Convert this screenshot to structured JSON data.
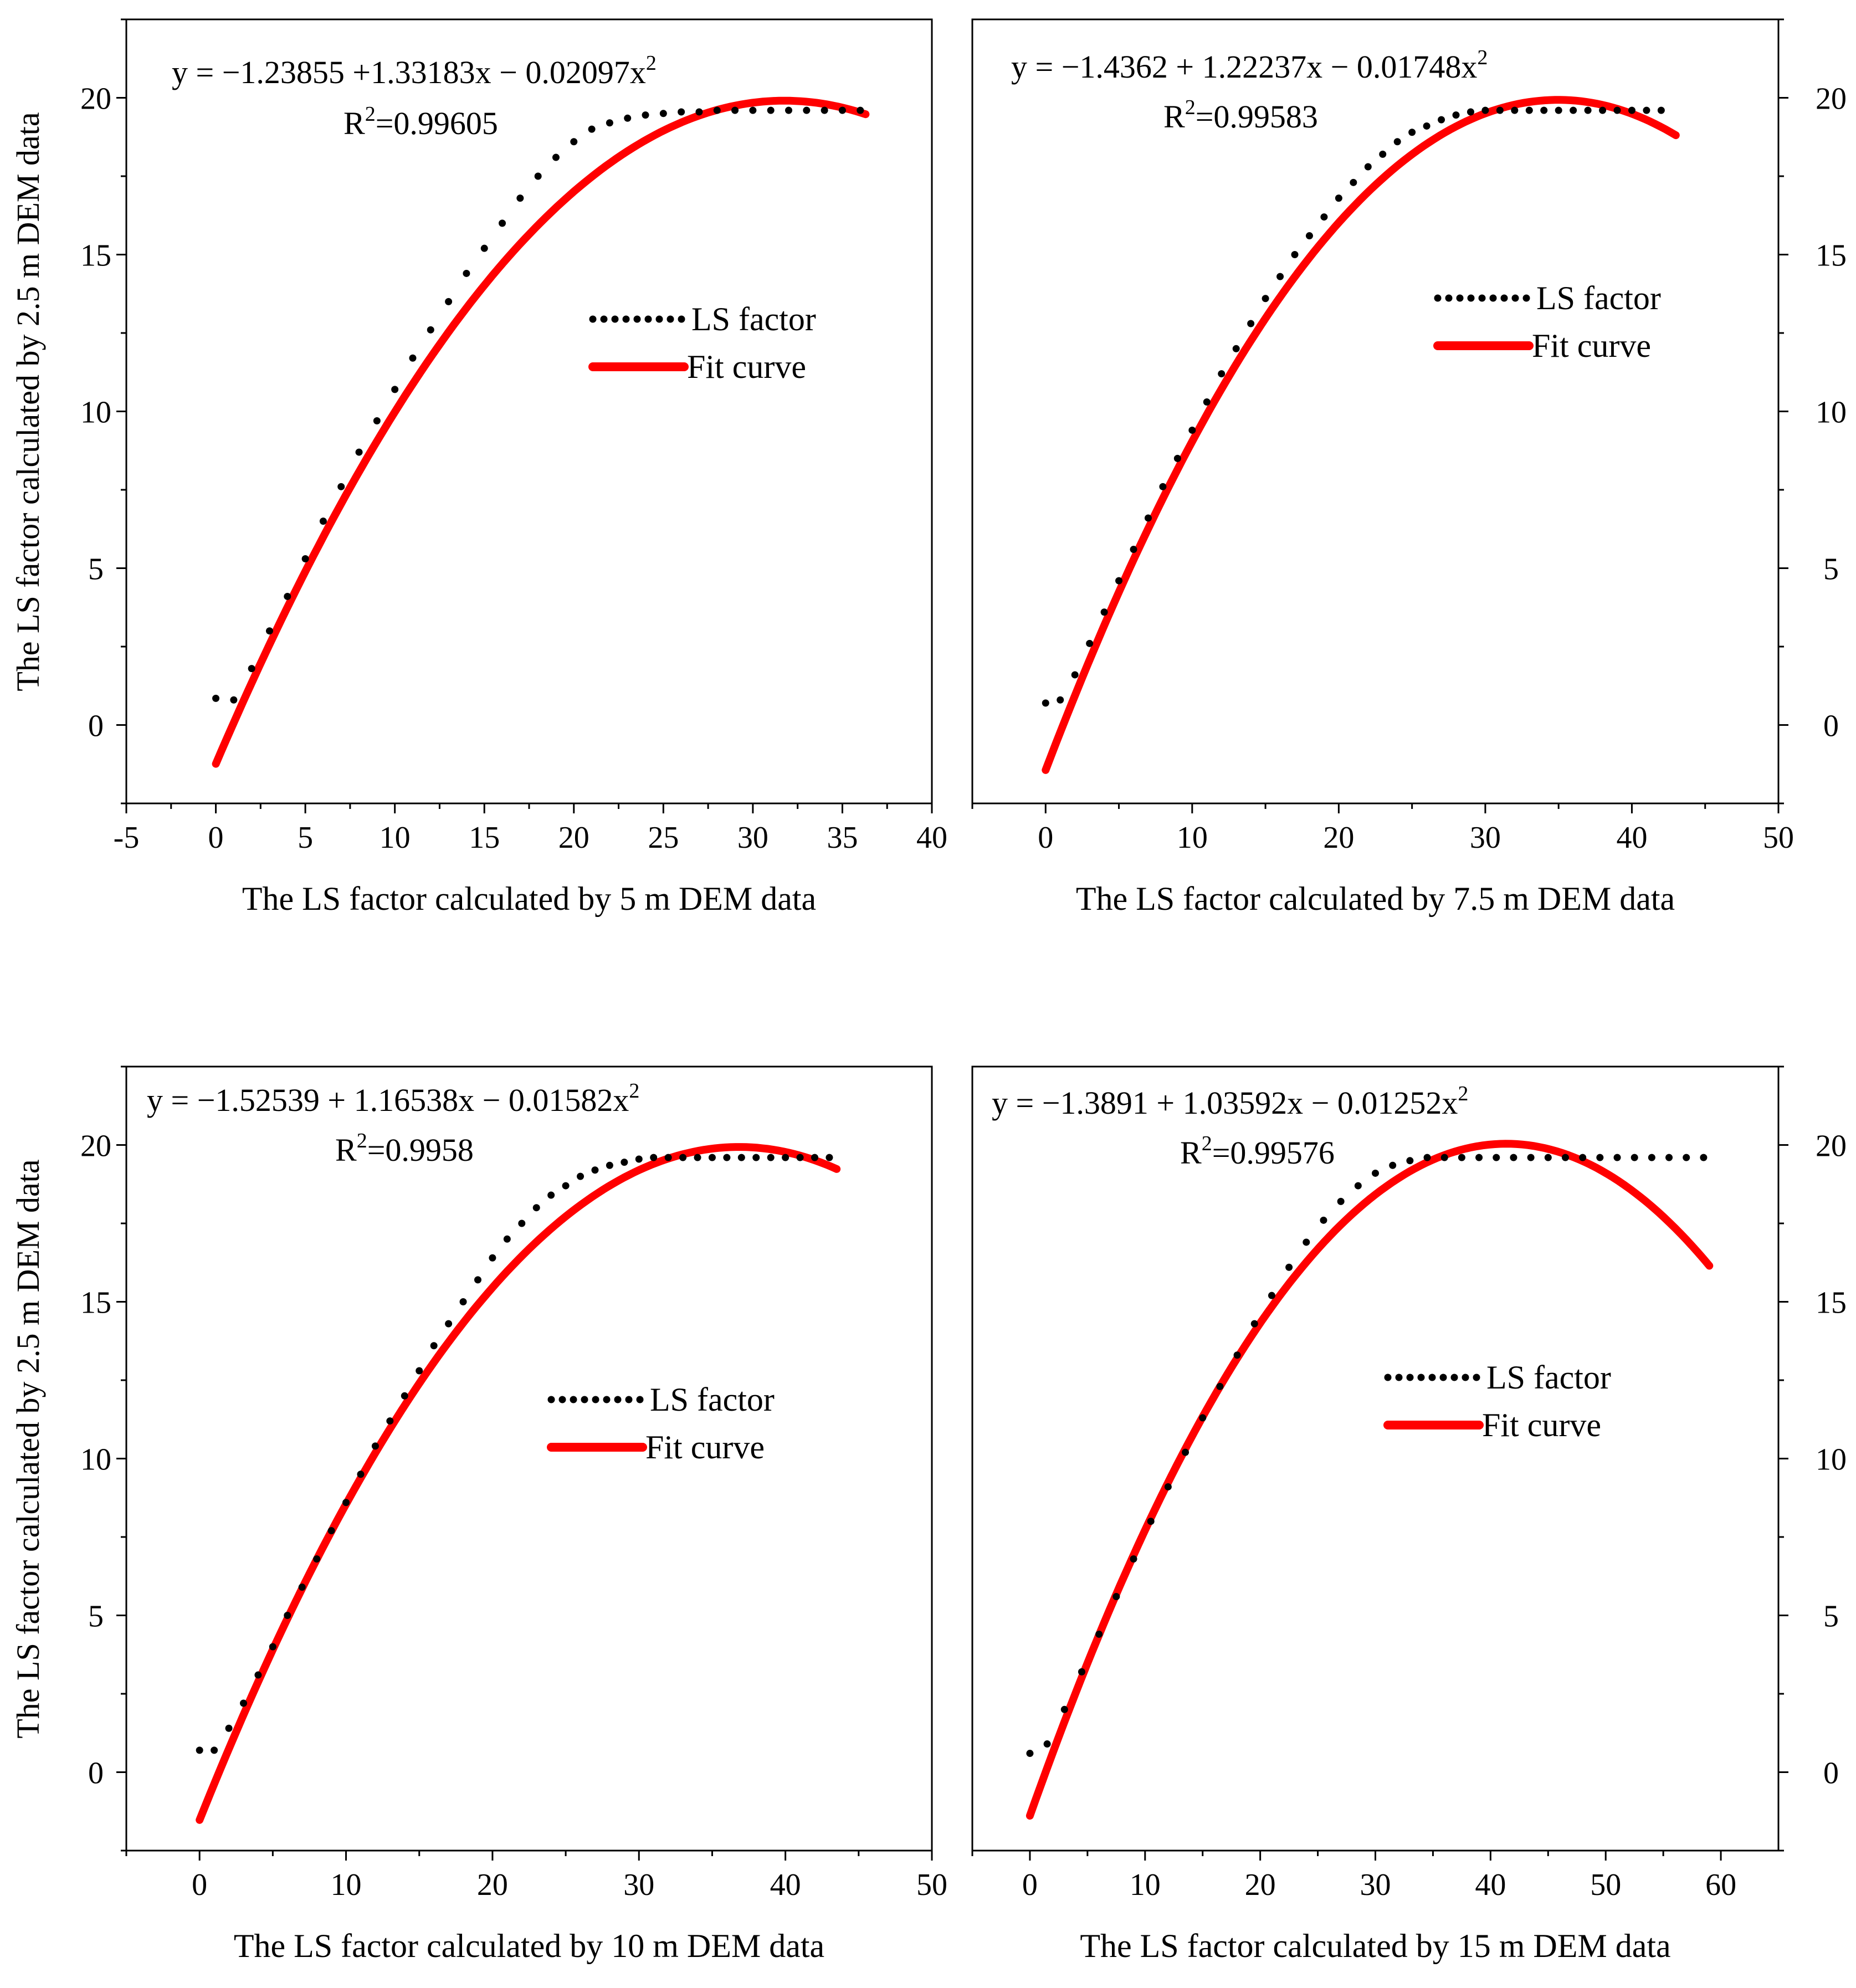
{
  "figure": {
    "y_axis_label": "The LS factor calculated by 2.5 m DEM data"
  },
  "colors": {
    "data": "#000000",
    "fit": "#ff0000",
    "axis": "#000000"
  },
  "legend": {
    "data_label": "LS factor",
    "fit_label": "Fit curve"
  },
  "chart_data": [
    {
      "type": "line",
      "id": "p5",
      "xlabel": "The LS factor calculated by 5 m DEM data",
      "ylabel": "The LS factor calculated by 2.5 m DEM data",
      "equation": "y = −1.23855 +1.33183x − 0.02097x",
      "equation_sup": "2",
      "r2_prefix": "R",
      "r2_sup": "2",
      "r2_value": "=0.99605",
      "coefficients": [
        -1.23855,
        1.33183,
        -0.02097
      ],
      "xlim": [
        -5,
        40
      ],
      "ylim": [
        -2.5,
        22.5
      ],
      "xticks": [
        -5,
        0,
        5,
        10,
        15,
        20,
        25,
        30,
        35,
        40
      ],
      "yticks": [
        0,
        5,
        10,
        15,
        20
      ],
      "y_axis_side": "left",
      "x_range": [
        0,
        36.3
      ],
      "series": [
        {
          "name": "LS factor",
          "style": "dotted",
          "x": [
            0,
            1,
            2,
            3,
            4,
            5,
            6,
            7,
            8,
            9,
            10,
            11,
            12,
            13,
            14,
            15,
            16,
            17,
            18,
            19,
            20,
            21,
            22,
            23,
            24,
            25,
            26,
            27,
            28,
            29,
            30,
            31,
            32,
            33,
            34,
            35,
            36
          ],
          "y": [
            0.85,
            0.8,
            1.8,
            3.0,
            4.1,
            5.3,
            6.5,
            7.6,
            8.7,
            9.7,
            10.7,
            11.7,
            12.6,
            13.5,
            14.4,
            15.2,
            16.0,
            16.8,
            17.5,
            18.1,
            18.6,
            19.0,
            19.2,
            19.35,
            19.45,
            19.5,
            19.55,
            19.55,
            19.6,
            19.6,
            19.6,
            19.6,
            19.6,
            19.6,
            19.6,
            19.6,
            19.6
          ]
        },
        {
          "name": "Fit curve",
          "style": "solid",
          "from_coefficients": true
        }
      ],
      "legend_position": "center-right"
    },
    {
      "type": "line",
      "id": "p75",
      "xlabel": "The LS factor calculated by 7.5 m DEM data",
      "ylabel": "",
      "equation": "y = −1.4362 + 1.22237x − 0.01748x",
      "equation_sup": "2",
      "r2_prefix": "R",
      "r2_sup": "2",
      "r2_value": "=0.99583",
      "coefficients": [
        -1.4362,
        1.22237,
        -0.01748
      ],
      "xlim": [
        -5,
        50
      ],
      "ylim": [
        -2.5,
        22.5
      ],
      "xticks": [
        0,
        10,
        20,
        30,
        40,
        50
      ],
      "yticks": [
        0,
        5,
        10,
        15,
        20
      ],
      "y_axis_side": "right",
      "x_range": [
        0,
        43
      ],
      "series": [
        {
          "name": "LS factor",
          "style": "dotted",
          "x": [
            0,
            1,
            2,
            3,
            4,
            5,
            6,
            7,
            8,
            9,
            10,
            11,
            12,
            13,
            14,
            15,
            16,
            17,
            18,
            19,
            20,
            21,
            22,
            23,
            24,
            25,
            26,
            27,
            28,
            29,
            30,
            31,
            32,
            33,
            34,
            35,
            36,
            37,
            38,
            39,
            40,
            41,
            42
          ],
          "y": [
            0.7,
            0.8,
            1.6,
            2.6,
            3.6,
            4.6,
            5.6,
            6.6,
            7.6,
            8.5,
            9.4,
            10.3,
            11.2,
            12.0,
            12.8,
            13.6,
            14.3,
            15.0,
            15.6,
            16.2,
            16.8,
            17.3,
            17.8,
            18.2,
            18.6,
            18.9,
            19.1,
            19.3,
            19.45,
            19.55,
            19.6,
            19.6,
            19.6,
            19.6,
            19.6,
            19.6,
            19.6,
            19.6,
            19.6,
            19.6,
            19.6,
            19.6,
            19.6
          ]
        },
        {
          "name": "Fit curve",
          "style": "solid",
          "from_coefficients": true
        }
      ],
      "legend_position": "center-right"
    },
    {
      "type": "line",
      "id": "p10",
      "xlabel": "The LS factor calculated by 10 m DEM data",
      "ylabel": "The LS factor calculated by 2.5 m DEM data",
      "equation": "y = −1.52539 + 1.16538x − 0.01582x",
      "equation_sup": "2",
      "r2_prefix": "R",
      "r2_sup": "2",
      "r2_value": "=0.9958",
      "coefficients": [
        -1.52539,
        1.16538,
        -0.01582
      ],
      "xlim": [
        -5,
        50
      ],
      "ylim": [
        -2.5,
        22.5
      ],
      "xticks": [
        0,
        10,
        20,
        30,
        40,
        50
      ],
      "yticks": [
        0,
        5,
        10,
        15,
        20
      ],
      "y_axis_side": "left",
      "x_range": [
        0,
        43.5
      ],
      "series": [
        {
          "name": "LS factor",
          "style": "dotted",
          "x": [
            0,
            1,
            2,
            3,
            4,
            5,
            6,
            7,
            8,
            9,
            10,
            11,
            12,
            13,
            14,
            15,
            16,
            17,
            18,
            19,
            20,
            21,
            22,
            23,
            24,
            25,
            26,
            27,
            28,
            29,
            30,
            31,
            32,
            33,
            34,
            35,
            36,
            37,
            38,
            39,
            40,
            41,
            42,
            43
          ],
          "y": [
            0.7,
            0.7,
            1.4,
            2.2,
            3.1,
            4.0,
            5.0,
            5.9,
            6.8,
            7.7,
            8.6,
            9.5,
            10.4,
            11.2,
            12.0,
            12.8,
            13.6,
            14.3,
            15.0,
            15.7,
            16.4,
            17.0,
            17.5,
            18.0,
            18.4,
            18.7,
            19.0,
            19.2,
            19.35,
            19.45,
            19.55,
            19.6,
            19.6,
            19.6,
            19.6,
            19.6,
            19.6,
            19.6,
            19.6,
            19.6,
            19.6,
            19.6,
            19.6,
            19.6
          ]
        },
        {
          "name": "Fit curve",
          "style": "solid",
          "from_coefficients": true
        }
      ],
      "legend_position": "center-right"
    },
    {
      "type": "line",
      "id": "p15",
      "xlabel": "The LS factor calculated by 15 m DEM data",
      "ylabel": "",
      "equation": "y = −1.3891 + 1.03592x − 0.01252x",
      "equation_sup": "2",
      "r2_prefix": "R",
      "r2_sup": "2",
      "r2_value": "=0.99576",
      "coefficients": [
        -1.3891,
        1.03592,
        -0.01252
      ],
      "xlim": [
        -5,
        65
      ],
      "ylim": [
        -2.5,
        22.5
      ],
      "xticks": [
        0,
        10,
        20,
        30,
        40,
        50,
        60
      ],
      "yticks": [
        0,
        5,
        10,
        15,
        20
      ],
      "y_axis_side": "right",
      "x_range": [
        0,
        59
      ],
      "series": [
        {
          "name": "LS factor",
          "style": "dotted",
          "x": [
            0,
            1.5,
            3,
            4.5,
            6,
            7.5,
            9,
            10.5,
            12,
            13.5,
            15,
            16.5,
            18,
            19.5,
            21,
            22.5,
            24,
            25.5,
            27,
            28.5,
            30,
            31.5,
            33,
            34.5,
            36,
            37.5,
            39,
            40.5,
            42,
            43.5,
            45,
            46.5,
            48,
            49.5,
            51,
            52.5,
            54,
            55.5,
            57,
            58.5
          ],
          "y": [
            0.6,
            0.9,
            2.0,
            3.2,
            4.4,
            5.6,
            6.8,
            8.0,
            9.1,
            10.2,
            11.3,
            12.3,
            13.3,
            14.3,
            15.2,
            16.1,
            16.9,
            17.6,
            18.2,
            18.7,
            19.1,
            19.35,
            19.5,
            19.6,
            19.6,
            19.6,
            19.6,
            19.6,
            19.6,
            19.6,
            19.6,
            19.6,
            19.6,
            19.6,
            19.6,
            19.6,
            19.6,
            19.6,
            19.6,
            19.6
          ]
        },
        {
          "name": "Fit curve",
          "style": "solid",
          "from_coefficients": true
        }
      ],
      "legend_position": "center-right"
    }
  ]
}
